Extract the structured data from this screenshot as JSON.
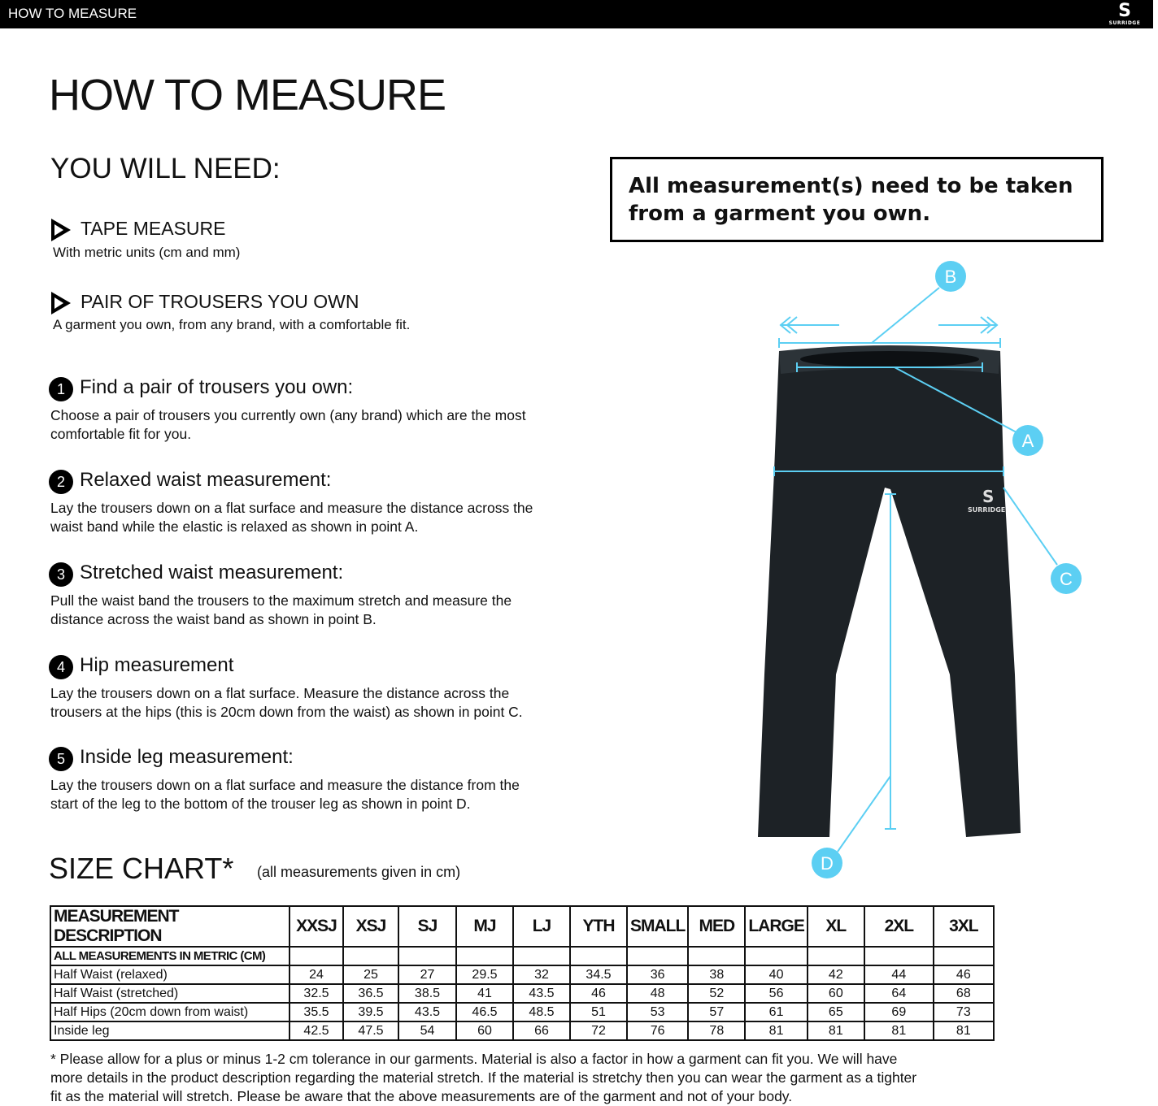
{
  "topbar": {
    "title": "HOW TO MEASURE",
    "logo": "SURRIDGE"
  },
  "page_title": "HOW TO MEASURE",
  "you_will_need": {
    "heading": "YOU WILL NEED:",
    "items": [
      {
        "title": "TAPE MEASURE",
        "desc": "With metric units (cm and mm)"
      },
      {
        "title": "PAIR OF TROUSERS YOU OWN",
        "desc": "A garment you own, from any brand, with a comfortable fit."
      }
    ]
  },
  "steps": [
    {
      "n": "1",
      "title": "Find a pair of trousers you own:",
      "body": "Choose a pair of trousers you currently own (any brand) which are the most comfortable fit for you."
    },
    {
      "n": "2",
      "title": "Relaxed waist measurement:",
      "body": "Lay the trousers down on a flat surface and measure the distance across the waist band while the elastic is relaxed as shown in point A."
    },
    {
      "n": "3",
      "title": "Stretched waist measurement:",
      "body": "Pull the waist band the trousers to the maximum stretch and measure the distance across the waist band as shown in point B."
    },
    {
      "n": "4",
      "title": "Hip measurement",
      "body": "Lay the trousers down on a flat surface. Measure the distance across the trousers at the hips (this is 20cm down from the waist) as shown in point C."
    },
    {
      "n": "5",
      "title": "Inside leg measurement:",
      "body": "Lay the trousers down on a flat surface and measure the distance from the start of the leg to the bottom of the trouser leg as shown in point D."
    }
  ],
  "notice": "All measurement(s) need to be taken from a garment you own.",
  "diagram": {
    "labels": [
      "A",
      "B",
      "C",
      "D"
    ],
    "accent": "#5ccff3",
    "garment_logo": "SURRIDGE"
  },
  "size_chart": {
    "title": "SIZE CHART*",
    "note": "(all measurements given in cm)",
    "header": [
      "MEASUREMENT DESCRIPTION",
      "XXSJ",
      "XSJ",
      "SJ",
      "MJ",
      "LJ",
      "YTH",
      "SMALL",
      "MED",
      "LARGE",
      "XL",
      "2XL",
      "3XL"
    ],
    "subheader": "ALL MEASUREMENTS IN METRIC (CM)",
    "rows": [
      [
        "Half Waist (relaxed)",
        "24",
        "25",
        "27",
        "29.5",
        "32",
        "34.5",
        "36",
        "38",
        "40",
        "42",
        "44",
        "46"
      ],
      [
        "Half Waist (stretched)",
        "32.5",
        "36.5",
        "38.5",
        "41",
        "43.5",
        "46",
        "48",
        "52",
        "56",
        "60",
        "64",
        "68"
      ],
      [
        "Half Hips (20cm down from waist)",
        "35.5",
        "39.5",
        "43.5",
        "46.5",
        "48.5",
        "51",
        "53",
        "57",
        "61",
        "65",
        "69",
        "73"
      ],
      [
        "Inside leg",
        "42.5",
        "47.5",
        "54",
        "60",
        "66",
        "72",
        "76",
        "78",
        "81",
        "81",
        "81",
        "81"
      ]
    ]
  },
  "footnote": "* Please allow for a plus or minus 1-2 cm tolerance in our garments. Material is also a factor in how a garment can fit you. We will have more details in the product description regarding the material stretch.  If the material is stretchy then you can wear the garment as a tighter fit as the material will stretch.  Please be aware that the above measurements are of the garment and not of your body."
}
